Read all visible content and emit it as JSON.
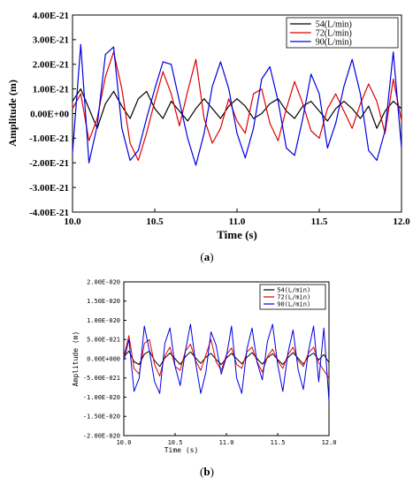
{
  "colors": {
    "s54": "#000000",
    "s72": "#e00000",
    "s90": "#0000e0"
  },
  "chart_data": [
    {
      "type": "line",
      "panel_label": "(a)",
      "panel_letter": "a",
      "title": "",
      "xlabel": "Time (s)",
      "ylabel": "Amplitude (m)",
      "xlim": [
        10.0,
        12.0
      ],
      "ylim": [
        -4e-21,
        4e-21
      ],
      "xticks": [
        10.0,
        10.5,
        11.0,
        11.5,
        12.0
      ],
      "xtick_labels": [
        "10.0",
        "10.5",
        "11.0",
        "11.5",
        "12.0"
      ],
      "yticks": [
        4e-21,
        3e-21,
        2e-21,
        1e-21,
        0,
        -1e-21,
        -2e-21,
        -3e-21,
        -4e-21
      ],
      "ytick_labels": [
        "4.00E-21",
        "3.00E-21",
        "2.00E-21",
        "1.00E-21",
        "0.00E+00",
        "-1.00E-21",
        "-2.00E-21",
        "-3.00E-21",
        "-4.00E-21"
      ],
      "grid": false,
      "legend_position": "top-right",
      "x": [
        10.0,
        10.05,
        10.1,
        10.15,
        10.2,
        10.25,
        10.3,
        10.35,
        10.4,
        10.45,
        10.5,
        10.55,
        10.6,
        10.65,
        10.7,
        10.75,
        10.8,
        10.85,
        10.9,
        10.95,
        11.0,
        11.05,
        11.1,
        11.15,
        11.2,
        11.25,
        11.3,
        11.35,
        11.4,
        11.45,
        11.5,
        11.55,
        11.6,
        11.65,
        11.7,
        11.75,
        11.8,
        11.85,
        11.9,
        11.95,
        12.0
      ],
      "series": [
        {
          "name": "54(L/min)",
          "color_key": "s54",
          "values": [
            5e-22,
            1e-21,
            2e-22,
            -6e-22,
            4e-22,
            9e-22,
            3e-22,
            -2e-22,
            6e-22,
            9e-22,
            2e-22,
            -2e-22,
            5e-22,
            1e-22,
            -3e-22,
            2e-22,
            6e-22,
            2e-22,
            -2e-22,
            3e-22,
            6e-22,
            3e-22,
            -2e-22,
            0.0,
            4e-22,
            6e-22,
            1e-22,
            -2e-22,
            3e-22,
            5e-22,
            1e-22,
            -3e-22,
            2e-22,
            5e-22,
            2e-22,
            -2e-22,
            3e-22,
            -6e-22,
            1e-22,
            5e-22,
            2e-22
          ]
        },
        {
          "name": "72(L/min)",
          "color_key": "s72",
          "values": [
            2e-22,
            8e-22,
            -1.1e-21,
            -2e-22,
            1.5e-21,
            2.5e-21,
            1e-21,
            -1.2e-21,
            -1.9e-21,
            -8e-22,
            5e-22,
            1.7e-21,
            8e-22,
            -5e-22,
            9e-22,
            2.2e-21,
            -2e-22,
            -1.2e-21,
            -6e-22,
            6e-22,
            -3e-22,
            -8e-22,
            8e-22,
            1e-21,
            -4e-22,
            -1.1e-21,
            2e-22,
            1.3e-21,
            4e-22,
            -7e-22,
            -1e-21,
            2e-22,
            8e-22,
            1e-22,
            -6e-22,
            4e-22,
            1.2e-21,
            5e-22,
            -8e-22,
            1.4e-21,
            -3e-22
          ]
        },
        {
          "name": "90(L/min)",
          "color_key": "s90",
          "values": [
            -1.6e-21,
            2.8e-21,
            -2e-21,
            -5e-22,
            2.4e-21,
            2.7e-21,
            -6e-22,
            -1.9e-21,
            -1.5e-21,
            -2e-22,
            1e-21,
            2.1e-21,
            2e-21,
            5e-22,
            -1e-21,
            -2.1e-21,
            -8e-22,
            1.1e-21,
            2.1e-21,
            1e-21,
            -8e-22,
            -1.8e-21,
            -6e-22,
            1.4e-21,
            1.9e-21,
            5e-22,
            -1.4e-21,
            -1.7e-21,
            -2e-22,
            1.6e-21,
            8e-22,
            -1.4e-21,
            -4e-22,
            1.1e-21,
            2.2e-21,
            8e-22,
            -1.5e-21,
            -1.9e-21,
            -7e-22,
            2.5e-21,
            -1.4e-21
          ]
        }
      ]
    },
    {
      "type": "line",
      "panel_label": "(b)",
      "panel_letter": "b",
      "title": "",
      "xlabel": "Time (s)",
      "ylabel": "Amplitude (m)",
      "xlim": [
        10.0,
        12.0
      ],
      "ylim": [
        -2e-20,
        2e-20
      ],
      "xticks": [
        10.0,
        10.5,
        11.0,
        11.5,
        12.0
      ],
      "xtick_labels": [
        "10.0",
        "10.5",
        "11.0",
        "11.5",
        "12.0"
      ],
      "yticks": [
        2e-20,
        1.5e-20,
        1e-20,
        5e-21,
        0,
        -5e-21,
        -1e-20,
        -1.5e-20,
        -2e-20
      ],
      "ytick_labels": [
        "2.00E-020",
        "1.50E-020",
        "1.00E-020",
        "5.00E-021",
        "0.00E+000",
        "-5.00E-021",
        "-1.00E-020",
        "-1.50E-020",
        "-2.00E-020"
      ],
      "grid": false,
      "legend_position": "top-right",
      "x": [
        10.0,
        10.05,
        10.1,
        10.15,
        10.2,
        10.25,
        10.3,
        10.35,
        10.4,
        10.45,
        10.5,
        10.55,
        10.6,
        10.65,
        10.7,
        10.75,
        10.8,
        10.85,
        10.9,
        10.95,
        11.0,
        11.05,
        11.1,
        11.15,
        11.2,
        11.25,
        11.3,
        11.35,
        11.4,
        11.45,
        11.5,
        11.55,
        11.6,
        11.65,
        11.7,
        11.75,
        11.8,
        11.85,
        11.9,
        11.95,
        12.0
      ],
      "series": [
        {
          "name": "54(L/min)",
          "color_key": "s54",
          "values": [
            5e-22,
            2e-21,
            -8e-22,
            -1.5e-21,
            1.2e-21,
            2e-21,
            -5e-22,
            -2e-21,
            2e-22,
            1.5e-21,
            0.0,
            -1.5e-21,
            5e-22,
            1.8e-21,
            2e-22,
            -1.2e-21,
            4e-22,
            1.4e-21,
            -2e-22,
            -1.5e-21,
            2e-22,
            1.4e-21,
            0.0,
            -1.3e-21,
            4e-22,
            1.6e-21,
            0.0,
            -1.4e-21,
            2e-22,
            1.3e-21,
            -2e-22,
            -1.5e-21,
            3e-22,
            1.6e-21,
            1e-22,
            -1.4e-21,
            6e-22,
            1.5e-21,
            -3e-22,
            1.1e-21,
            -1e-21
          ]
        },
        {
          "name": "72(L/min)",
          "color_key": "s72",
          "values": [
            5e-22,
            6e-21,
            -2.5e-21,
            -4e-21,
            4e-21,
            5e-21,
            -1.5e-21,
            -4.5e-21,
            8e-22,
            3e-21,
            -2e-21,
            -3e-21,
            2e-21,
            3.8e-21,
            -5e-22,
            -3e-21,
            1e-21,
            5e-21,
            -8e-22,
            -3e-21,
            1e-21,
            2.8e-21,
            -1.5e-21,
            -2.5e-21,
            1.8e-21,
            3e-21,
            -8e-22,
            -3.5e-21,
            5e-22,
            2.5e-21,
            -5e-22,
            -2.5e-21,
            1e-21,
            3e-21,
            -5e-22,
            -2e-21,
            1.5e-21,
            3e-21,
            -1e-21,
            -3e-21,
            -5e-21
          ]
        },
        {
          "name": "90(L/min)",
          "color_key": "s90",
          "values": [
            -5e-22,
            5e-21,
            -8.5e-21,
            -5e-21,
            8.5e-21,
            2e-21,
            -6e-21,
            -9e-21,
            4e-21,
            8e-21,
            -2e-21,
            -7e-21,
            2e-21,
            9e-21,
            -1e-21,
            -9e-21,
            -3.5e-21,
            7e-21,
            3.5e-21,
            -4e-21,
            5e-22,
            8.5e-21,
            -5e-21,
            -9e-21,
            2.5e-21,
            8e-21,
            -1e-21,
            -5.5e-21,
            4.5e-21,
            9e-21,
            -1.5e-21,
            -8.5e-21,
            1.5e-21,
            7.5e-21,
            -3e-21,
            -8e-21,
            2e-21,
            8.5e-21,
            -6e-21,
            8e-21,
            -1.1e-20
          ]
        }
      ]
    }
  ]
}
